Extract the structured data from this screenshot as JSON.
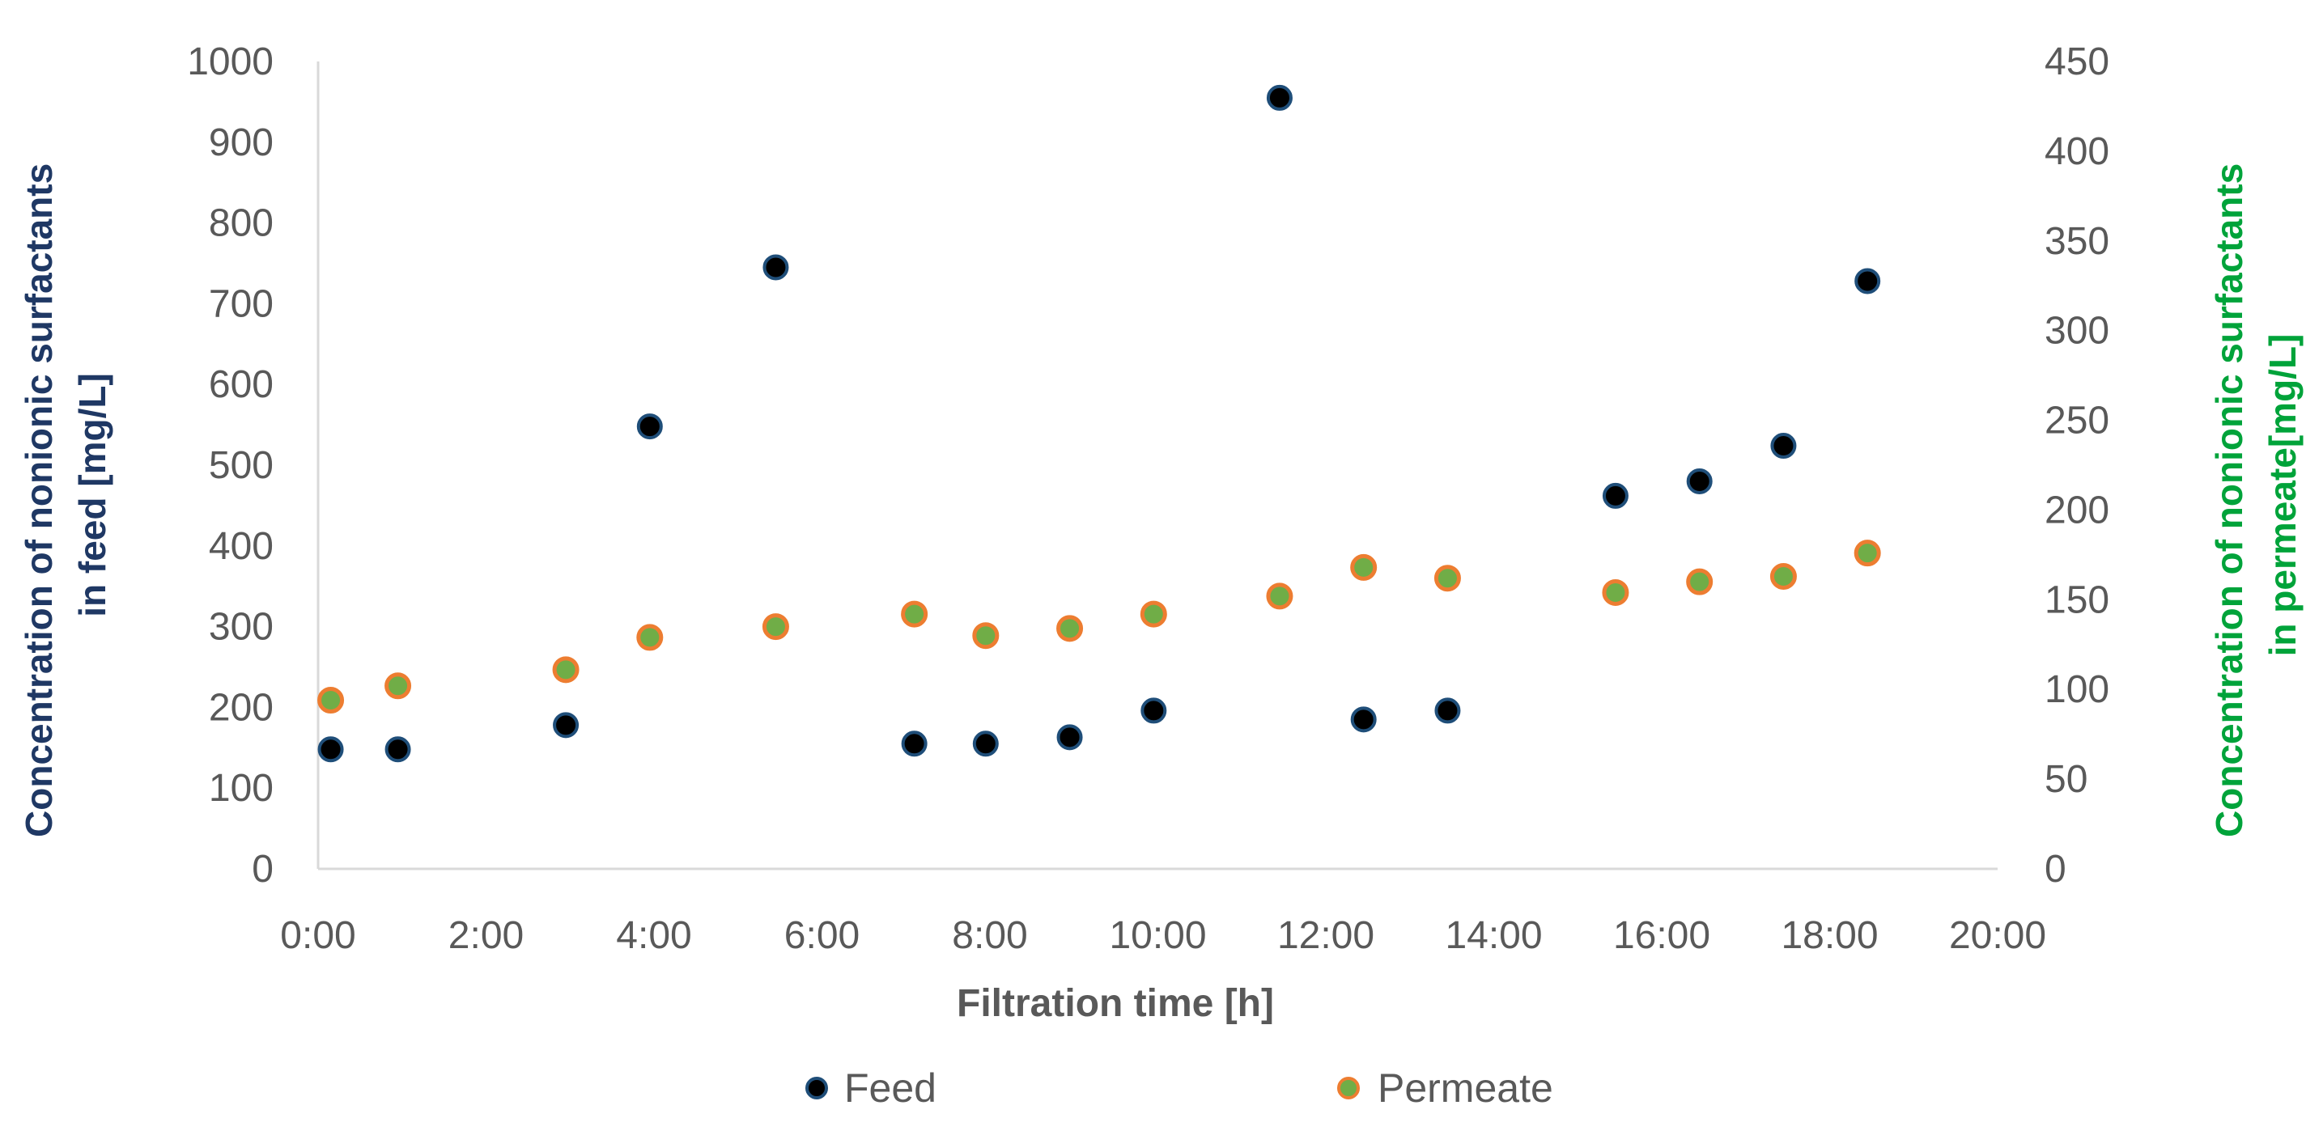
{
  "colors": {
    "feed_fill": "#000000",
    "feed_stroke": "#1F4E79",
    "permeate_fill": "#70AD47",
    "permeate_stroke": "#ED7D31",
    "left_axis_title": "#1F3864",
    "right_axis_title": "#00A33A",
    "axis_line": "#D9D9D9",
    "tick_text": "#595959"
  },
  "chart_data": {
    "type": "scatter",
    "title": "",
    "xlabel": "Filtration time [h]",
    "ylabel_left": [
      "Concentration of nonionic surfactants",
      "in feed [mg/L]"
    ],
    "ylabel_right": [
      "Concentration of nonionic surfactants",
      "in permeate[mg/L]"
    ],
    "xlim": [
      0,
      20
    ],
    "ylim_left": [
      0,
      1000
    ],
    "ylim_right": [
      0,
      450
    ],
    "grid": false,
    "legend_position": "bottom",
    "x_ticks": [
      "0:00",
      "2:00",
      "4:00",
      "6:00",
      "8:00",
      "10:00",
      "12:00",
      "14:00",
      "16:00",
      "18:00",
      "20:00"
    ],
    "y_left_ticks": [
      "0",
      "100",
      "200",
      "300",
      "400",
      "500",
      "600",
      "700",
      "800",
      "900",
      "1000"
    ],
    "y_right_ticks": [
      "0",
      "50",
      "100",
      "150",
      "200",
      "250",
      "300",
      "350",
      "400",
      "450"
    ],
    "series": [
      {
        "name": "Feed",
        "axis": "left",
        "x": [
          0.15,
          0.95,
          2.95,
          3.95,
          5.45,
          7.1,
          7.95,
          8.95,
          9.95,
          11.45,
          12.45,
          13.45,
          15.45,
          16.45,
          17.45,
          18.45
        ],
        "y": [
          148,
          148,
          178,
          548,
          745,
          155,
          155,
          163,
          196,
          955,
          185,
          196,
          462,
          480,
          524,
          728
        ]
      },
      {
        "name": "Permeate",
        "axis": "right",
        "x": [
          0.15,
          0.95,
          2.95,
          3.95,
          5.45,
          7.1,
          7.95,
          8.95,
          9.95,
          11.45,
          12.45,
          13.45,
          15.45,
          16.45,
          17.45,
          18.45
        ],
        "y": [
          94,
          102,
          111,
          129,
          135,
          142,
          130,
          134,
          142,
          152,
          168,
          162,
          154,
          160,
          163,
          176
        ]
      }
    ]
  }
}
